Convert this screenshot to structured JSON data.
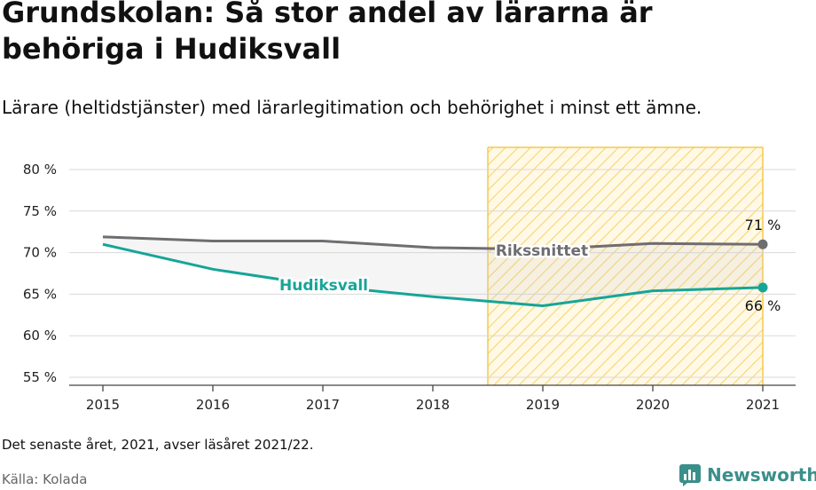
{
  "title": "Grundskolan: Så stor andel av lärarna är behöriga i Hudiksvall",
  "subtitle": "Lärare (heltidstjänster) med lärarlegitimation och behörighet i minst ett ämne.",
  "note": "Det senaste året, 2021, avser läsåret 2021/22.",
  "source": "Källa: Kolada",
  "brand": "Newsworthy",
  "colors": {
    "riket": "#6e6d71",
    "kommun": "#16a597",
    "highlight": "#f5c84c"
  },
  "chart_data": {
    "type": "line",
    "x": [
      2015,
      2016,
      2017,
      2018,
      2019,
      2020,
      2021
    ],
    "xticks": [
      "2015",
      "2016",
      "2017",
      "2018",
      "2019",
      "2020",
      "2021"
    ],
    "ylim": [
      54,
      82
    ],
    "yticks": [
      55,
      60,
      65,
      70,
      75,
      80
    ],
    "ytick_labels": [
      "55 %",
      "60 %",
      "65 %",
      "70 %",
      "75 %",
      "80 %"
    ],
    "highlight_range": [
      2018.5,
      2021
    ],
    "series": [
      {
        "name": "Rikssnittet",
        "values": [
          71.9,
          71.4,
          71.4,
          70.6,
          70.4,
          71.1,
          71.0
        ],
        "end_label": "71 %"
      },
      {
        "name": "Hudiksvall",
        "values": [
          71.0,
          68.0,
          66.0,
          64.7,
          63.6,
          65.4,
          65.8
        ],
        "end_label": "66 %"
      }
    ]
  }
}
